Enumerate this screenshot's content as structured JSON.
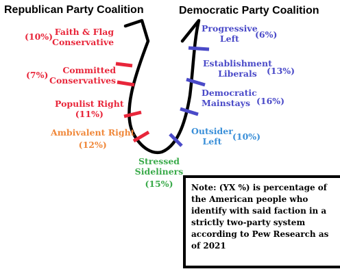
{
  "headers": {
    "republican": "Republican Party Coalition",
    "democratic": "Democratic Party Coalition"
  },
  "factions": {
    "faith_flag": {
      "line1": "Faith & Flag",
      "line2": "Conservative",
      "pct": "(10%)"
    },
    "committed": {
      "line1": "Committed",
      "line2": "Conservatives",
      "pct": "(7%)"
    },
    "populist": {
      "line1": "Populist Right",
      "pct": "(11%)"
    },
    "ambivalent": {
      "line1": "Ambivalent Right",
      "pct": "(12%)"
    },
    "stressed": {
      "line1": "Stressed",
      "line2": "Sideliners",
      "pct": "(15%)"
    },
    "outsider": {
      "line1": "Outsider",
      "line2": "Left",
      "pct": "(10%)"
    },
    "mainstays": {
      "line1": "Democratic",
      "line2": "Mainstays",
      "pct": "(16%)"
    },
    "establishment": {
      "line1": "Establishment",
      "line2": "Liberals",
      "pct": "(13%)"
    },
    "progressive": {
      "line1": "Progressive",
      "line2": "Left",
      "pct": "(6%)"
    }
  },
  "colors": {
    "republican": "#e8263a",
    "ambivalent": "#f0883a",
    "stressed": "#3aaa4a",
    "outsider": "#3a8fd8",
    "democratic": "#4a4ac8",
    "curve": "#000000"
  },
  "note": {
    "text": "Note: (YX %) is percentage of the American people who identify with said faction in a strictly two-party system according to Pew Research as of 2021"
  }
}
